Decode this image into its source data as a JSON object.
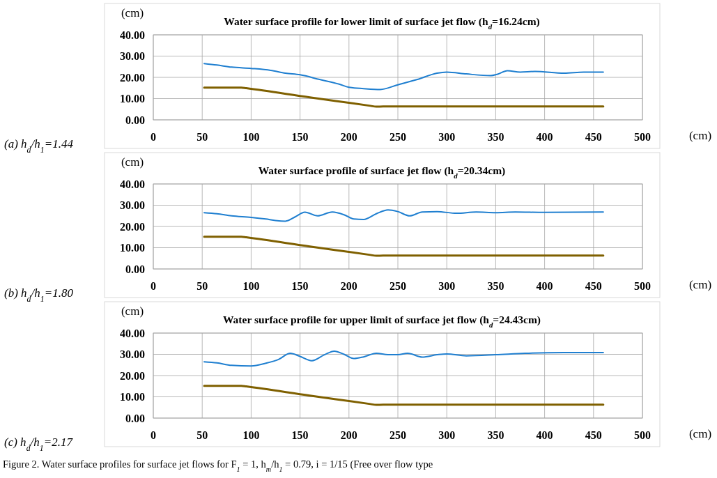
{
  "chart_data": [
    {
      "type": "line",
      "title": "Water surface profile for lower limit of surface jet flow (h$_{d}$=16.24cm)",
      "xlabel": "(cm)",
      "ylabel": "(cm)",
      "annotations": [
        "(a) h$_{d}$/h$_{1}$=1.44"
      ],
      "xlim": [
        0,
        500
      ],
      "xticks": [
        0,
        50,
        100,
        150,
        200,
        250,
        300,
        350,
        400,
        450,
        500
      ],
      "ylim": [
        0,
        40
      ],
      "yticks": [
        {
          "value": 0,
          "label": "0.00"
        },
        {
          "value": 10,
          "label": "10.00"
        },
        {
          "value": 20,
          "label": "20.00"
        },
        {
          "value": 30,
          "label": "30.00"
        },
        {
          "value": 40,
          "label": "40.00"
        }
      ],
      "grid": true,
      "series": [
        {
          "color": "#1f7fd0",
          "x": [
            52,
            65,
            80,
            100,
            120,
            135,
            150,
            170,
            190,
            200,
            215,
            232,
            250,
            270,
            290,
            300,
            320,
            345,
            352,
            362,
            375,
            390,
            420,
            440,
            460
          ],
          "values": [
            26.5,
            25.8,
            24.8,
            24.2,
            23.3,
            22,
            21.2,
            19,
            16.8,
            15.3,
            14.7,
            14.3,
            16.5,
            19,
            22,
            22.5,
            21.6,
            20.8,
            21.5,
            23.1,
            22.5,
            22.8,
            22,
            22.5,
            22.5
          ]
        },
        {
          "color": "#7f6000",
          "x": [
            52,
            70,
            90,
            95,
            160,
            222,
            228,
            235,
            300,
            460
          ],
          "values": [
            15.2,
            15.2,
            15.2,
            14.9,
            10.6,
            6.6,
            6.2,
            6.3,
            6.3,
            6.3
          ]
        }
      ]
    },
    {
      "type": "line",
      "title": "Water surface profile of surface jet flow (h$_{d}$=20.34cm)",
      "xlabel": "(cm)",
      "ylabel": "(cm)",
      "annotations": [
        "(b) h$_{d}$/h$_{1}$=1.80"
      ],
      "xlim": [
        0,
        500
      ],
      "xticks": [
        0,
        50,
        100,
        150,
        200,
        250,
        300,
        350,
        400,
        450,
        500
      ],
      "ylim": [
        0,
        40
      ],
      "yticks": [
        {
          "value": 0,
          "label": "0.00"
        },
        {
          "value": 10,
          "label": "10.00"
        },
        {
          "value": 20,
          "label": "20.00"
        },
        {
          "value": 30,
          "label": "30.00"
        },
        {
          "value": 40,
          "label": "40.00"
        }
      ],
      "grid": true,
      "series": [
        {
          "color": "#1f7fd0",
          "x": [
            52,
            65,
            80,
            100,
            115,
            125,
            135,
            145,
            155,
            168,
            183,
            195,
            205,
            215,
            228,
            240,
            250,
            262,
            275,
            290,
            310,
            330,
            350,
            370,
            400,
            460
          ],
          "values": [
            26.5,
            26,
            25,
            24.3,
            23.5,
            22.8,
            22.5,
            24.5,
            26.7,
            25,
            26.8,
            25.5,
            23.5,
            23.3,
            26,
            27.8,
            27,
            25,
            26.8,
            27,
            26.2,
            26.8,
            26.5,
            26.8,
            26.6,
            26.8
          ]
        },
        {
          "color": "#7f6000",
          "x": [
            52,
            70,
            90,
            95,
            160,
            222,
            228,
            235,
            300,
            460
          ],
          "values": [
            15.2,
            15.2,
            15.2,
            14.9,
            10.6,
            6.6,
            6.2,
            6.3,
            6.3,
            6.3
          ]
        }
      ]
    },
    {
      "type": "line",
      "title": "Water surface profile for upper limit of surface jet flow (h$_{d}$=24.43cm)",
      "xlabel": "(cm)",
      "ylabel": "(cm)",
      "annotations": [
        "(c) h$_{d}$/h$_{1}$=2.17",
        "Figure 2. Water surface profiles for surface jet flows for F$_{1}$ = 1, h$_{m}$/h$_{1}$ = 0.79, i = 1/15 (Free over flow type"
      ],
      "xlim": [
        0,
        500
      ],
      "xticks": [
        0,
        50,
        100,
        150,
        200,
        250,
        300,
        350,
        400,
        450,
        500
      ],
      "ylim": [
        0,
        40
      ],
      "yticks": [
        {
          "value": 0,
          "label": "0.00"
        },
        {
          "value": 10,
          "label": "10.00"
        },
        {
          "value": 20,
          "label": "20.00"
        },
        {
          "value": 30,
          "label": "30.00"
        },
        {
          "value": 40,
          "label": "40.00"
        }
      ],
      "grid": true,
      "series": [
        {
          "color": "#1f7fd0",
          "x": [
            52,
            65,
            80,
            100,
            115,
            128,
            140,
            150,
            162,
            175,
            185,
            195,
            205,
            215,
            228,
            240,
            250,
            260,
            275,
            290,
            300,
            320,
            350,
            380,
            420,
            460
          ],
          "values": [
            26.5,
            26,
            24.8,
            24.5,
            25.8,
            27.6,
            30.5,
            29,
            27,
            29.8,
            31.5,
            30,
            28,
            28.8,
            30.5,
            29.8,
            29.8,
            30.5,
            28.7,
            29.8,
            30.2,
            29.3,
            29.8,
            30.5,
            30.8,
            30.8
          ]
        },
        {
          "color": "#7f6000",
          "x": [
            52,
            70,
            90,
            95,
            160,
            222,
            228,
            235,
            300,
            460
          ],
          "values": [
            15.2,
            15.2,
            15.2,
            14.9,
            10.6,
            6.6,
            6.2,
            6.3,
            6.3,
            6.3
          ]
        }
      ]
    }
  ]
}
